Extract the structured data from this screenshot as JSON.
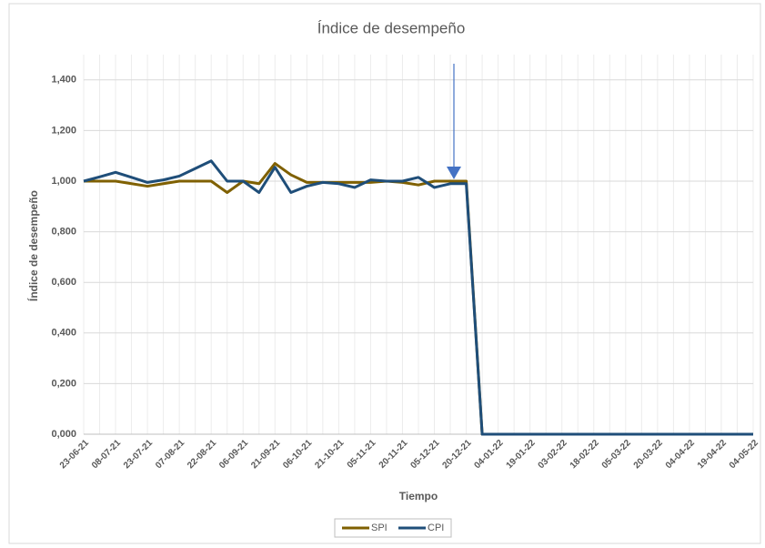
{
  "chart_data": {
    "type": "line",
    "title": "Índice de desempeño",
    "x_label": "Tiempo",
    "y_label": "Índice de desempeño",
    "categories": [
      "23-06-21",
      null,
      "08-07-21",
      null,
      "23-07-21",
      null,
      "07-08-21",
      null,
      "22-08-21",
      null,
      "06-09-21",
      null,
      "21-09-21",
      null,
      "06-10-21",
      null,
      "21-10-21",
      null,
      "05-11-21",
      null,
      "20-11-21",
      null,
      "05-12-21",
      null,
      "20-12-21",
      null,
      "04-01-22",
      null,
      "19-01-22",
      null,
      "03-02-22",
      null,
      "18-02-22",
      null,
      "05-03-22",
      null,
      "20-03-22",
      null,
      "04-04-22",
      null,
      "19-04-22",
      null,
      "04-05-22"
    ],
    "series": [
      {
        "name": "SPI",
        "color": "#7f6000",
        "values": [
          1.0,
          1.0,
          1.0,
          0.99,
          0.98,
          0.99,
          1.0,
          1.0,
          1.0,
          0.955,
          1.0,
          0.99,
          1.07,
          1.025,
          0.995,
          0.995,
          0.995,
          0.995,
          0.995,
          1.0,
          0.995,
          0.985,
          1.0,
          1.0,
          1.0,
          0,
          0,
          0,
          0,
          0,
          0,
          0,
          0,
          0,
          0,
          0,
          0,
          0,
          0,
          0,
          0,
          0,
          0
        ]
      },
      {
        "name": "CPI",
        "color": "#1f4e79",
        "values": [
          1.0,
          1.017,
          1.035,
          1.015,
          0.995,
          1.005,
          1.02,
          1.05,
          1.08,
          1.0,
          1.0,
          0.955,
          1.055,
          0.955,
          0.98,
          0.995,
          0.99,
          0.975,
          1.005,
          1.0,
          1.0,
          1.015,
          0.975,
          0.99,
          0.99,
          0,
          0,
          0,
          0,
          0,
          0,
          0,
          0,
          0,
          0,
          0,
          0,
          0,
          0,
          0,
          0,
          0,
          0
        ]
      }
    ],
    "ylim": [
      0,
      1.5
    ],
    "yticks": [
      {
        "value": 0,
        "label": "0,000"
      },
      {
        "value": 0.2,
        "label": "0,200"
      },
      {
        "value": 0.4,
        "label": "0,400"
      },
      {
        "value": 0.6,
        "label": "0,600"
      },
      {
        "value": 0.8,
        "label": "0,800"
      },
      {
        "value": 1.0,
        "label": "1,000"
      },
      {
        "value": 1.2,
        "label": "1,200"
      },
      {
        "value": 1.4,
        "label": "1,400"
      }
    ],
    "grid": true,
    "legend": "bottom"
  }
}
